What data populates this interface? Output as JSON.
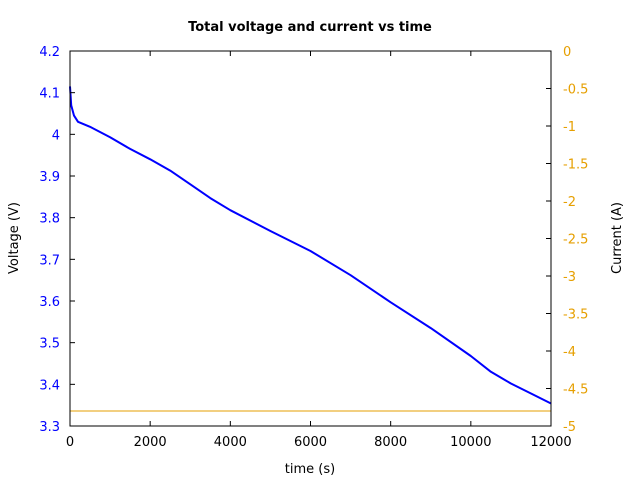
{
  "chart_data": {
    "type": "line",
    "title": "Total voltage and current vs time",
    "xlabel": "time (s)",
    "ylabel": "Voltage (V)",
    "y2label": "Current (A)",
    "xlim": [
      0,
      12000
    ],
    "ylim": [
      3.3,
      4.2
    ],
    "y2lim": [
      -5,
      0
    ],
    "grid": false,
    "legend": "none",
    "x_ticks": [
      "0",
      "2000",
      "4000",
      "6000",
      "8000",
      "10000",
      "12000"
    ],
    "y_ticks": [
      "3.3",
      "3.4",
      "3.5",
      "3.6",
      "3.7",
      "3.8",
      "3.9",
      "4",
      "4.1",
      "4.2"
    ],
    "y2_ticks": [
      "-5",
      "-4.5",
      "-4",
      "-3.5",
      "-3",
      "-2.5",
      "-2",
      "-1.5",
      "-1",
      "-0.5",
      "0"
    ],
    "colors": {
      "voltage": "#0000ff",
      "current": "#e69f00"
    },
    "series": [
      {
        "name": "Voltage",
        "axis": "left",
        "color": "#0000ff",
        "x": [
          0,
          30,
          100,
          200,
          500,
          1000,
          1500,
          2000,
          2500,
          3000,
          3500,
          4000,
          5000,
          6000,
          7000,
          8000,
          9000,
          10000,
          10500,
          11000,
          11500,
          12000
        ],
        "values": [
          4.115,
          4.07,
          4.045,
          4.03,
          4.018,
          3.993,
          3.965,
          3.94,
          3.913,
          3.88,
          3.847,
          3.818,
          3.768,
          3.72,
          3.662,
          3.597,
          3.535,
          3.468,
          3.43,
          3.402,
          3.378,
          3.354
        ]
      },
      {
        "name": "Current",
        "axis": "right",
        "color": "#e69f00",
        "x": [
          0,
          12000
        ],
        "values": [
          -4.8,
          -4.8
        ]
      }
    ]
  }
}
